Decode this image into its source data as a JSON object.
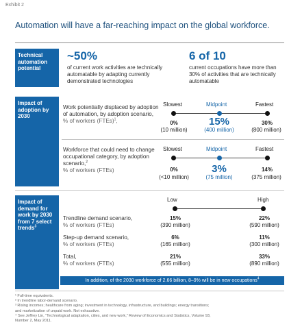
{
  "exhibit_label": "Exhibit 2",
  "headline": "Automation will have a far-reaching impact on the global workforce.",
  "potential": {
    "label": "Technical automation potential",
    "stat1_value": "~50%",
    "stat1_desc": "of current work activities are technically automatable by adapting currently demonstrated technologies",
    "stat2_value": "6 of 10",
    "stat2_desc": "current occupations have more than 30% of activities that are technically automatable"
  },
  "adoption": {
    "label": "Impact of adoption by 2030",
    "scale_slowest": "Slowest",
    "scale_midpoint": "Midpoint",
    "scale_fastest": "Fastest",
    "row1": {
      "title": "Work potentially displaced by adoption of automation, by adoption scenario,",
      "unit": "% of workers (FTEs)",
      "footnote_ref": "1",
      "slowest_value": "0%",
      "slowest_sub": "(10 million)",
      "midpoint_value": "15%",
      "midpoint_sub": "(400 million)",
      "fastest_value": "30%",
      "fastest_sub": "(800 million)"
    },
    "row2": {
      "title": "Workforce that could need to change occupational category, by adoption scenario,",
      "footnote_ref": "2",
      "unit": "% of workers (FTEs)",
      "slowest_value": "0%",
      "slowest_sub": "(<10 million)",
      "midpoint_value": "3%",
      "midpoint_sub": "(75 million)",
      "fastest_value": "14%",
      "fastest_sub": "(375 million)"
    }
  },
  "demand": {
    "label": "Impact of demand for work by 2030 from 7 select trends",
    "footnote_ref": "3",
    "scale_low": "Low",
    "scale_high": "High",
    "rows": [
      {
        "title": "Trendline demand scenario,",
        "unit": "% of workers (FTEs)",
        "low_value": "15%",
        "low_sub": "(390 million)",
        "high_value": "22%",
        "high_sub": "(590 million)"
      },
      {
        "title": "Step-up demand scenario,",
        "unit": "% of workers (FTEs)",
        "low_value": "6%",
        "low_sub": "(165 million)",
        "high_value": "11%",
        "high_sub": "(300 million)"
      },
      {
        "title": "Total,",
        "unit": "% of workers (FTEs)",
        "low_value": "21%",
        "low_sub": "(555 million)",
        "high_value": "33%",
        "high_sub": "(890 million)"
      }
    ],
    "banner": "In addition, of the 2030 workforce of 2.66 billion, 8–9% will be in new occupations",
    "banner_ref": "4"
  },
  "footnotes": [
    "¹ Full-time equivalents.",
    "² In trendline labor-demand scenario.",
    "³ Rising incomes; healthcare from aging; investment in technology, infrastructure, and buildings; energy transitions;",
    "   and marketization of unpaid work. Not exhaustive.",
    "⁴ See Jeffrey Lin, “Technological adaptation, cities, and new work,” Review of Economics and Statistics, Volume 93,",
    "   Number 2, May 2011."
  ]
}
